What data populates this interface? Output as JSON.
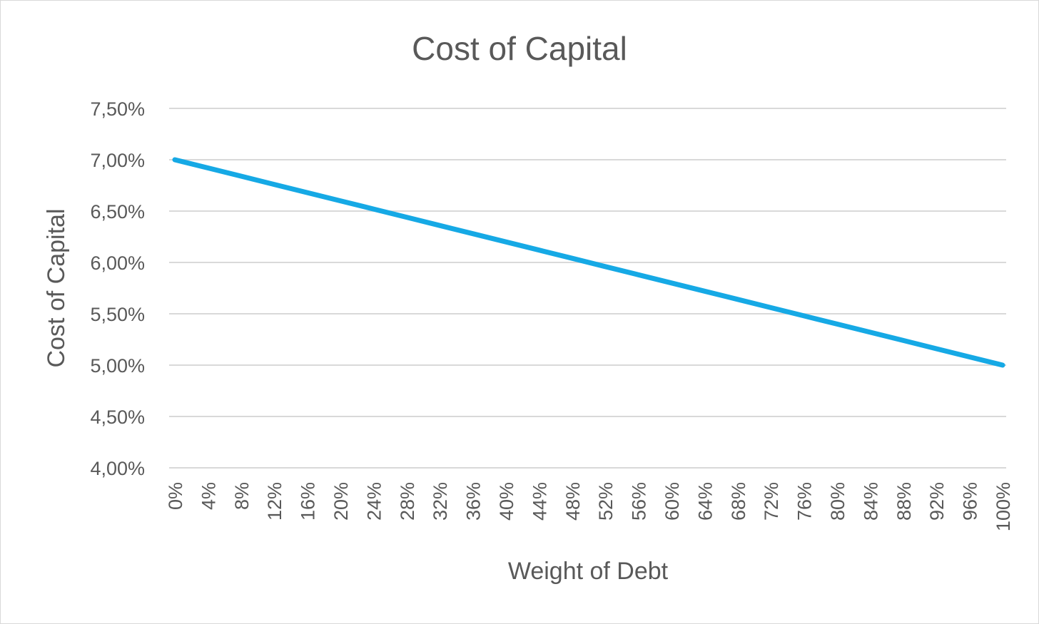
{
  "chart_data": {
    "type": "line",
    "title": "Cost of Capital",
    "xlabel": "Weight of Debt",
    "ylabel": "Cost of Capital",
    "ylim": [
      0.04,
      0.075
    ],
    "y_ticks": [
      0.04,
      0.045,
      0.05,
      0.055,
      0.06,
      0.065,
      0.07,
      0.075
    ],
    "y_tick_labels": [
      "4,00%",
      "4,50%",
      "5,00%",
      "5,50%",
      "6,00%",
      "6,50%",
      "7,00%",
      "7,50%"
    ],
    "x_tick_labels": [
      "0%",
      "4%",
      "8%",
      "12%",
      "16%",
      "20%",
      "24%",
      "28%",
      "32%",
      "36%",
      "40%",
      "44%",
      "48%",
      "52%",
      "56%",
      "60%",
      "64%",
      "68%",
      "72%",
      "76%",
      "80%",
      "84%",
      "88%",
      "92%",
      "96%",
      "100%"
    ],
    "grid": true,
    "legend": "none",
    "series_color": "#16a9e5",
    "series": [
      {
        "x": [
          0,
          0.04,
          0.08,
          0.12,
          0.16,
          0.2,
          0.24,
          0.28,
          0.32,
          0.36,
          0.4,
          0.44,
          0.48,
          0.52,
          0.56,
          0.6,
          0.64,
          0.68,
          0.72,
          0.76,
          0.8,
          0.84,
          0.88,
          0.92,
          0.96,
          1.0
        ],
        "values": [
          0.07,
          0.0692,
          0.0684,
          0.0676,
          0.0668,
          0.066,
          0.0652,
          0.0644,
          0.0636,
          0.0628,
          0.062,
          0.0612,
          0.0604,
          0.0596,
          0.0588,
          0.058,
          0.0572,
          0.0564,
          0.0556,
          0.0548,
          0.054,
          0.0532,
          0.0524,
          0.0516,
          0.0508,
          0.05
        ]
      }
    ]
  }
}
